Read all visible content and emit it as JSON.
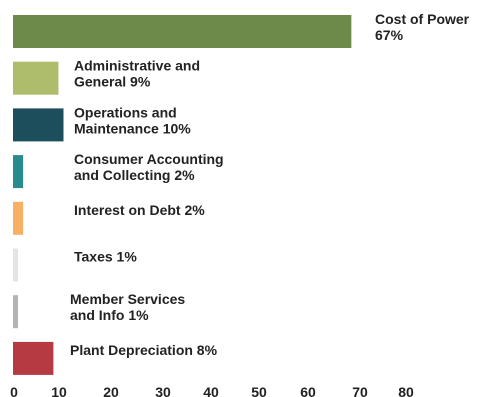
{
  "chart_data": {
    "type": "bar",
    "orientation": "horizontal",
    "title": "",
    "xlabel": "",
    "ylabel": "",
    "xlim": [
      0,
      80
    ],
    "grid": false,
    "legend": "none",
    "x_ticks": [
      "0",
      "10",
      "20",
      "30",
      "40",
      "50",
      "60",
      "70",
      "80"
    ],
    "bars": [
      {
        "lines": [
          "Cost of Power",
          "67%"
        ],
        "value": 67,
        "color": "#6e8a4a"
      },
      {
        "lines": [
          "Administrative and",
          "General 9%"
        ],
        "value": 9,
        "color": "#aebd6c"
      },
      {
        "lines": [
          "Operations and",
          "Maintenance 10%"
        ],
        "value": 10,
        "color": "#1c4e5b"
      },
      {
        "lines": [
          "Consumer Accounting",
          "and Collecting 2%"
        ],
        "value": 2,
        "color": "#2a8b8f"
      },
      {
        "lines": [
          "Interest on Debt 2%"
        ],
        "value": 2,
        "color": "#f7b064"
      },
      {
        "lines": [
          "Taxes 1%"
        ],
        "value": 1,
        "color": "#e4e4e4"
      },
      {
        "lines": [
          "Member Services",
          "and Info 1%"
        ],
        "value": 1,
        "color": "#b3b4b7"
      },
      {
        "lines": [
          "Plant Depreciation 8%"
        ],
        "value": 8,
        "color": "#b53a42"
      }
    ]
  }
}
